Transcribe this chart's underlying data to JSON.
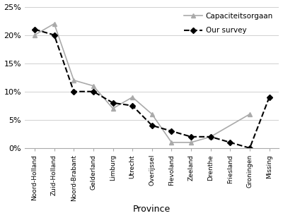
{
  "categories": [
    "Noord-Holland",
    "Zuid-Holland",
    "Noord-Brabant",
    "Gelderland",
    "Limburg",
    "Utrecht",
    "Overijssel",
    "Flevoland",
    "Zeeland",
    "Drenthe",
    "Friesland",
    "Groningen",
    "Missing"
  ],
  "our_survey": [
    0.21,
    0.2,
    0.1,
    0.1,
    0.08,
    0.075,
    0.04,
    0.03,
    0.02,
    0.02,
    0.01,
    0.0,
    0.09
  ],
  "capaciteitsorgaan": [
    0.2,
    0.22,
    0.12,
    0.11,
    0.07,
    0.09,
    0.06,
    0.01,
    0.01,
    0.02,
    null,
    0.06,
    null
  ],
  "our_survey_color": "#000000",
  "capaciteitsorgaan_color": "#aaaaaa",
  "xlabel": "Province",
  "ylim": [
    0,
    0.25
  ],
  "yticks": [
    0.0,
    0.05,
    0.1,
    0.15,
    0.2,
    0.25
  ],
  "ytick_labels": [
    "0%",
    "5%",
    "10%",
    "15%",
    "20%",
    "25%"
  ],
  "legend_our_survey": "Our survey",
  "legend_capaciteitsorgaan": "Capaciteitsorgaan",
  "background_color": "#ffffff",
  "grid_color": "#d0d0d0",
  "marker_survey": "D",
  "marker_cap": "^"
}
